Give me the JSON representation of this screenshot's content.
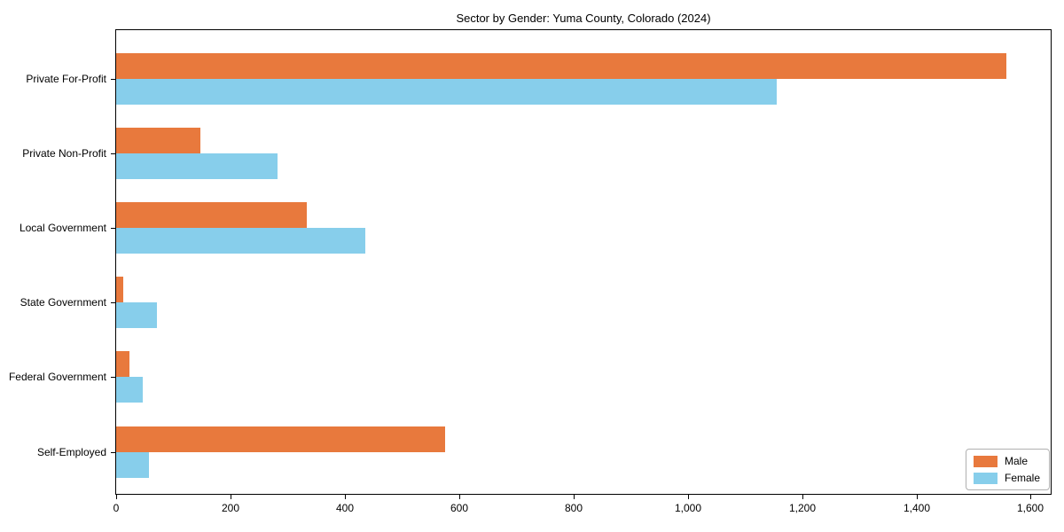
{
  "chart_data": {
    "type": "bar",
    "orientation": "horizontal",
    "title": "Sector by Gender: Yuma County, Colorado (2024)",
    "categories": [
      "Private For-Profit",
      "Private Non-Profit",
      "Local Government",
      "State Government",
      "Federal Government",
      "Self-Employed"
    ],
    "series": [
      {
        "name": "Male",
        "color": "#e8793d",
        "values": [
          1557,
          148,
          334,
          12,
          24,
          575
        ]
      },
      {
        "name": "Female",
        "color": "#87ceeb",
        "values": [
          1156,
          283,
          436,
          72,
          46,
          57
        ]
      }
    ],
    "xlabel": "",
    "ylabel": "",
    "xlim": [
      0,
      1635
    ],
    "xticks": [
      0,
      200,
      400,
      600,
      800,
      1000,
      1200,
      1400,
      1600
    ],
    "xtick_labels": [
      "0",
      "200",
      "400",
      "600",
      "800",
      "1,000",
      "1,200",
      "1,400",
      "1,600"
    ],
    "legend_position": "lower right",
    "grid": false,
    "axis_color": "#000000",
    "background_color": "#ffffff"
  }
}
